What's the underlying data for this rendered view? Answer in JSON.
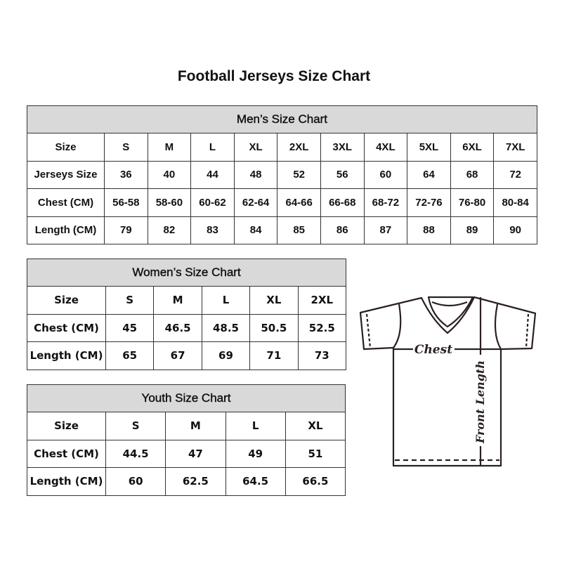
{
  "title": "Football Jerseys Size Chart",
  "tables": {
    "men": {
      "caption": "Men’s Size Chart",
      "rows": [
        [
          "Size",
          "S",
          "M",
          "L",
          "XL",
          "2XL",
          "3XL",
          "4XL",
          "5XL",
          "6XL",
          "7XL"
        ],
        [
          "Jerseys Size",
          "36",
          "40",
          "44",
          "48",
          "52",
          "56",
          "60",
          "64",
          "68",
          "72"
        ],
        [
          "Chest (CM)",
          "56-58",
          "58-60",
          "60-62",
          "62-64",
          "64-66",
          "66-68",
          "68-72",
          "72-76",
          "76-80",
          "80-84"
        ],
        [
          "Length (CM)",
          "79",
          "82",
          "83",
          "84",
          "85",
          "86",
          "87",
          "88",
          "89",
          "90"
        ]
      ]
    },
    "women": {
      "caption": "Women’s Size Chart",
      "rows": [
        [
          "Size",
          "S",
          "M",
          "L",
          "XL",
          "2XL"
        ],
        [
          "Chest (CM)",
          "45",
          "46.5",
          "48.5",
          "50.5",
          "52.5"
        ],
        [
          "Length (CM)",
          "65",
          "67",
          "69",
          "71",
          "73"
        ]
      ]
    },
    "youth": {
      "caption": "Youth Size Chart",
      "rows": [
        [
          "Size",
          "S",
          "M",
          "L",
          "XL"
        ],
        [
          "Chest (CM)",
          "44.5",
          "47",
          "49",
          "51"
        ],
        [
          "Length (CM)",
          "60",
          "62.5",
          "64.5",
          "66.5"
        ]
      ]
    }
  },
  "diagram": {
    "chest_label": "Chest",
    "length_label": "Front Length"
  },
  "colors": {
    "header_bg": "#d9d9d9",
    "border": "#333333"
  }
}
